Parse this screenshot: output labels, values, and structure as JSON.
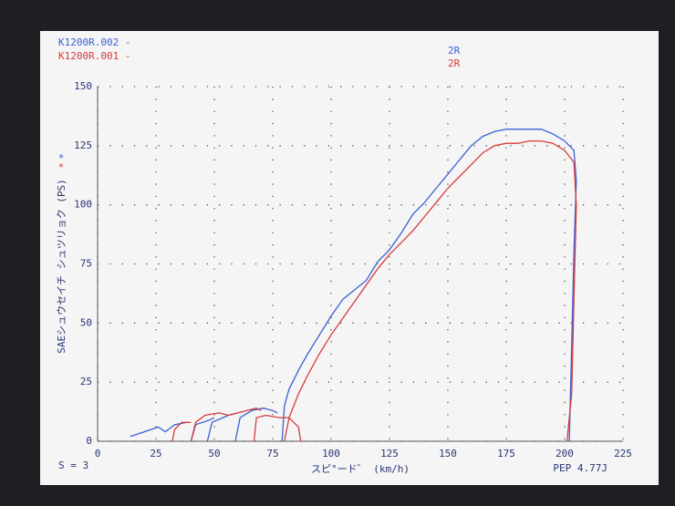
{
  "chart_data": {
    "type": "line",
    "legend": [
      "K1200R.002 -",
      "K1200R.001 -"
    ],
    "run_labels": [
      "2R",
      "2R"
    ],
    "y_markers": [
      "*",
      "*"
    ],
    "x_label": "スピ°ード゛ (km/h)",
    "y_label": "SAEシュウセイチ シュツリョク (PS)",
    "footer_left": "S = 3",
    "footer_right": "PEP 4.77J",
    "xlim": [
      0,
      225
    ],
    "xticks": [
      0,
      25,
      50,
      75,
      100,
      125,
      150,
      175,
      200,
      225
    ],
    "ylim": [
      0,
      150
    ],
    "yticks": [
      0,
      25,
      50,
      75,
      100,
      125,
      150
    ],
    "grid": true,
    "series": [
      {
        "name": "K1200R.002",
        "color": "#3b5ed6",
        "x": [
          14,
          20,
          26,
          29,
          33,
          38,
          null,
          40,
          42,
          48,
          50,
          null,
          47,
          49,
          56,
          60,
          null,
          59,
          61,
          66,
          71,
          75,
          77,
          null,
          79,
          80,
          82,
          86,
          90,
          95,
          100,
          105,
          110,
          115,
          120,
          125,
          130,
          135,
          140,
          145,
          150,
          155,
          160,
          165,
          170,
          175,
          180,
          185,
          190,
          195,
          200,
          204,
          205,
          204,
          203,
          202
        ],
        "values": [
          2,
          4,
          6,
          4,
          7,
          8,
          null,
          0,
          7,
          9,
          10,
          null,
          0,
          8,
          11,
          12,
          null,
          0,
          10,
          13,
          14,
          13,
          12,
          null,
          0,
          15,
          22,
          30,
          37,
          45,
          53,
          60,
          64,
          68,
          76,
          81,
          88,
          96,
          101,
          107,
          113,
          119,
          125,
          129,
          131,
          132,
          132,
          132,
          132,
          130,
          127,
          123,
          110,
          80,
          40,
          0
        ]
      },
      {
        "name": "K1200R.001",
        "color": "#d83a3e",
        "x": [
          32,
          33,
          36,
          40,
          null,
          40,
          42,
          46,
          52,
          56,
          60,
          64,
          68,
          70,
          null,
          67,
          68,
          72,
          78,
          82,
          86,
          87,
          null,
          80,
          82,
          86,
          90,
          95,
          100,
          105,
          110,
          115,
          120,
          125,
          130,
          135,
          140,
          145,
          150,
          155,
          160,
          165,
          170,
          175,
          180,
          185,
          190,
          195,
          200,
          204,
          205,
          204,
          203,
          201
        ],
        "values": [
          0,
          5,
          8,
          8,
          null,
          0,
          8,
          11,
          12,
          11,
          12,
          13,
          14,
          13,
          null,
          0,
          10,
          11,
          10,
          10,
          6,
          0,
          null,
          0,
          10,
          20,
          28,
          37,
          45,
          52,
          59,
          66,
          73,
          79,
          84,
          89,
          95,
          101,
          107,
          112,
          117,
          122,
          125,
          126,
          126,
          127,
          127,
          126,
          123,
          118,
          100,
          60,
          20,
          0
        ]
      }
    ]
  }
}
